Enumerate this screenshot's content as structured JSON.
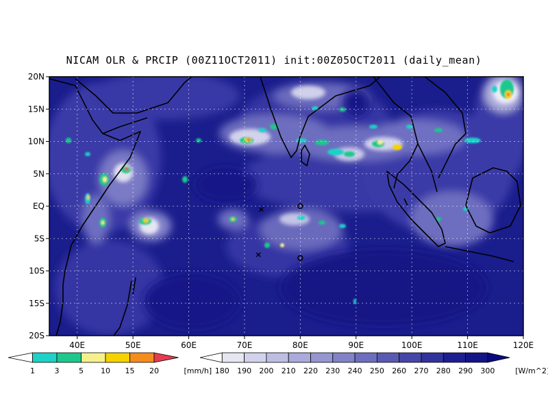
{
  "title": "NICAM OLR & PRCIP (00Z11OCT2011) init:00Z05OCT2011 (daily_mean)",
  "colors": {
    "ocean_base": "#1a1d8c",
    "deep": "#0f1378",
    "coast": "#000000",
    "grid": "#ffffff"
  },
  "map": {
    "lon_range": [
      35,
      120
    ],
    "lat_range": [
      -20,
      20
    ],
    "lon_ticks": [
      "40E",
      "50E",
      "60E",
      "70E",
      "80E",
      "90E",
      "100E",
      "110E",
      "120E"
    ],
    "lat_ticks": [
      "20N",
      "15N",
      "10N",
      "5N",
      "EQ",
      "5S",
      "10S",
      "15S",
      "20S"
    ],
    "markers": [
      {
        "symbol": "x",
        "lon": 73,
        "lat": -0.5
      },
      {
        "symbol": "x",
        "lon": 72.5,
        "lat": -7.5
      },
      {
        "symbol": "o",
        "lon": 80,
        "lat": 0
      },
      {
        "symbol": "o",
        "lon": 80,
        "lat": -8
      }
    ]
  },
  "precip_legend": {
    "labels": [
      "1",
      "3",
      "5",
      "10",
      "15",
      "20"
    ],
    "unit": "[mm/h]",
    "colors": [
      "#ffffff",
      "#1ed2c8",
      "#1ec88c",
      "#f5f08c",
      "#f5d200",
      "#f58c1e",
      "#e63c50"
    ]
  },
  "olr_legend": {
    "labels": [
      "180",
      "190",
      "200",
      "210",
      "220",
      "230",
      "240",
      "250",
      "260",
      "270",
      "280",
      "290",
      "300"
    ],
    "unit": "[W/m^2]",
    "colors": [
      "#ffffff",
      "#e6e6f2",
      "#d2d2ec",
      "#bebee4",
      "#aaaadc",
      "#9696d2",
      "#8282c8",
      "#6e6ebe",
      "#5a5ab4",
      "#4646a8",
      "#32329c",
      "#1e1e92",
      "#141488",
      "#0a0a7e"
    ]
  }
}
